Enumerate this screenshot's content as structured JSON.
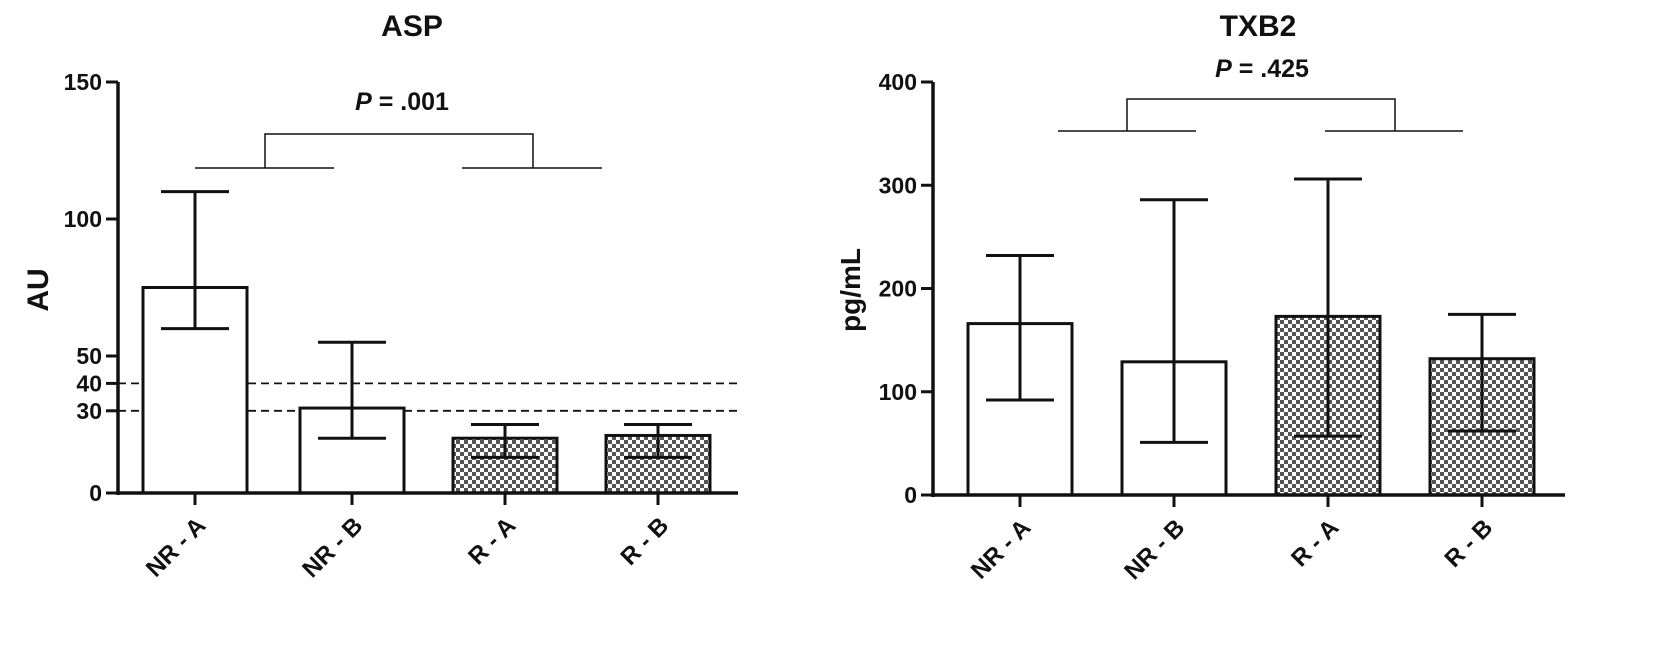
{
  "chart_data": [
    {
      "type": "bar",
      "title": "ASP",
      "xlabel": "",
      "ylabel": "AU",
      "ylim": [
        0,
        150
      ],
      "yticks": [
        0,
        30,
        40,
        50,
        100,
        150
      ],
      "categories": [
        "NR - A",
        "NR - B",
        "R - A",
        "R - B"
      ],
      "values": [
        75,
        31,
        20,
        21
      ],
      "error_low": [
        60,
        20,
        13,
        13
      ],
      "error_high": [
        110,
        55,
        25,
        25
      ],
      "fill_patterns": [
        "white",
        "white",
        "checkered",
        "checkered"
      ],
      "reference_lines": [
        30,
        40
      ],
      "grid": false,
      "legend": "none",
      "annotation": {
        "p_label": "P",
        "p_value": " = .001"
      }
    },
    {
      "type": "bar",
      "title": "TXB2",
      "xlabel": "",
      "ylabel": "pg/mL",
      "ylim": [
        0,
        400
      ],
      "yticks": [
        0,
        100,
        200,
        300,
        400
      ],
      "categories": [
        "NR - A",
        "NR - B",
        "R - A",
        "R - B"
      ],
      "values": [
        166,
        129,
        173,
        132
      ],
      "error_low": [
        92,
        51,
        57,
        62
      ],
      "error_high": [
        232,
        286,
        306,
        175
      ],
      "fill_patterns": [
        "white",
        "white",
        "checkered",
        "checkered"
      ],
      "reference_lines": [],
      "grid": false,
      "legend": "none",
      "annotation": {
        "p_label": "P",
        "p_value": " = .425"
      }
    }
  ]
}
